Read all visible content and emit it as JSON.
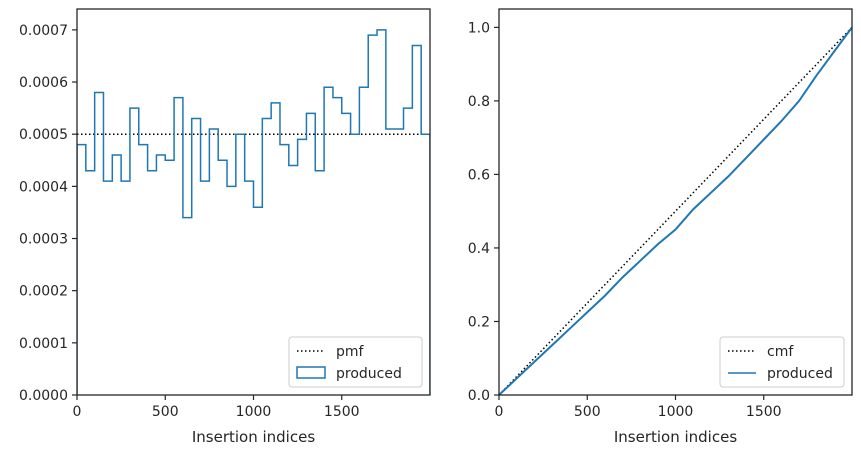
{
  "chart_data": [
    {
      "type": "histogram",
      "xlabel": "Insertion indices",
      "ylabel": "",
      "xlim": [
        0,
        2000
      ],
      "ylim": [
        0,
        0.00074
      ],
      "xticks": [
        0,
        500,
        1000,
        1500
      ],
      "xtick_labels": [
        "0",
        "500",
        "1000",
        "1500"
      ],
      "yticks": [
        0,
        0.0001,
        0.0002,
        0.0003,
        0.0004,
        0.0005,
        0.0006,
        0.0007
      ],
      "ytick_labels": [
        "0.0000",
        "0.0001",
        "0.0002",
        "0.0003",
        "0.0004",
        "0.0005",
        "0.0006",
        "0.0007"
      ],
      "legend_position": "lower-right",
      "series": [
        {
          "name": "pmf",
          "kind": "reference-line",
          "style": "dotted",
          "color": "#000000",
          "value": 0.0005
        },
        {
          "name": "produced",
          "kind": "step",
          "color": "#1f77b4",
          "bin_width": 50,
          "values": [
            0.00048,
            0.00043,
            0.00058,
            0.00041,
            0.00046,
            0.00041,
            0.00055,
            0.00048,
            0.00043,
            0.00046,
            0.00045,
            0.00057,
            0.00034,
            0.00053,
            0.00041,
            0.00051,
            0.00045,
            0.0004,
            0.0005,
            0.00041,
            0.00036,
            0.00053,
            0.00056,
            0.00048,
            0.00044,
            0.00049,
            0.00054,
            0.00043,
            0.00059,
            0.00057,
            0.00054,
            0.0005,
            0.00059,
            0.00069,
            0.0007,
            0.00051,
            0.00051,
            0.00055,
            0.00067,
            0.0005
          ]
        }
      ]
    },
    {
      "type": "line",
      "xlabel": "Insertion indices",
      "ylabel": "",
      "xlim": [
        0,
        2000
      ],
      "ylim": [
        0,
        1.05
      ],
      "xticks": [
        0,
        500,
        1000,
        1500
      ],
      "xtick_labels": [
        "0",
        "500",
        "1000",
        "1500"
      ],
      "yticks": [
        0,
        0.2,
        0.4,
        0.6,
        0.8,
        1.0
      ],
      "ytick_labels": [
        "0.0",
        "0.2",
        "0.4",
        "0.6",
        "0.8",
        "1.0"
      ],
      "legend_position": "lower-right",
      "series": [
        {
          "name": "cmf",
          "kind": "line",
          "style": "dotted",
          "color": "#000000",
          "x": [
            0,
            2000
          ],
          "y": [
            0,
            1.0
          ]
        },
        {
          "name": "produced",
          "kind": "line",
          "color": "#1f77b4",
          "x": [
            0,
            100,
            200,
            300,
            400,
            500,
            600,
            700,
            800,
            900,
            1000,
            1100,
            1200,
            1300,
            1400,
            1500,
            1600,
            1700,
            1800,
            1900,
            2000
          ],
          "y": [
            0,
            0.045,
            0.09,
            0.135,
            0.18,
            0.225,
            0.27,
            0.32,
            0.365,
            0.41,
            0.45,
            0.505,
            0.55,
            0.595,
            0.645,
            0.695,
            0.745,
            0.8,
            0.87,
            0.935,
            1.0
          ]
        }
      ]
    }
  ]
}
